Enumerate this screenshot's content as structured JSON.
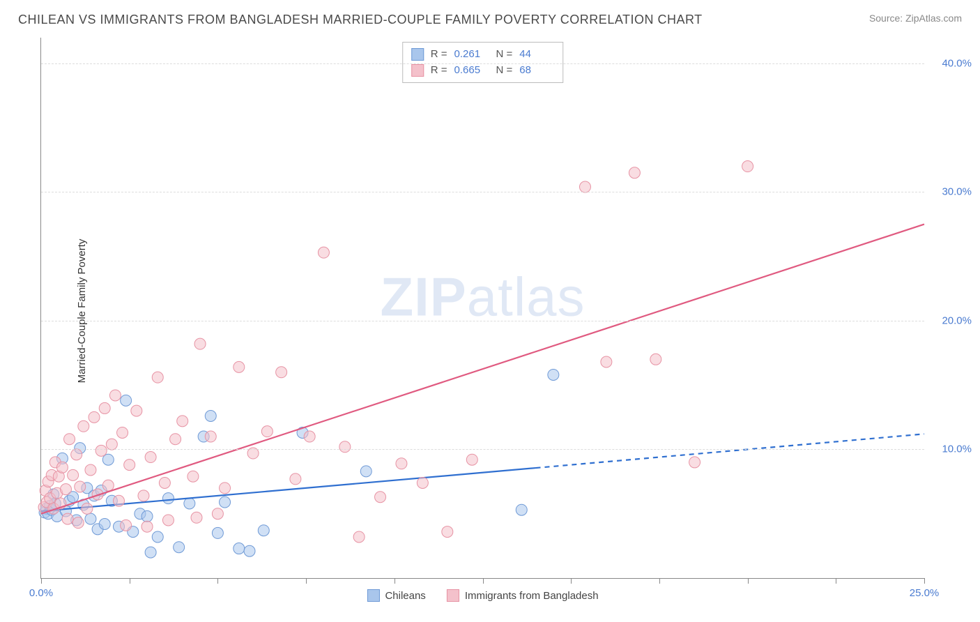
{
  "title": "CHILEAN VS IMMIGRANTS FROM BANGLADESH MARRIED-COUPLE FAMILY POVERTY CORRELATION CHART",
  "source": "Source: ZipAtlas.com",
  "ylabel": "Married-Couple Family Poverty",
  "watermark_bold": "ZIP",
  "watermark_light": "atlas",
  "chart": {
    "type": "scatter-with-regression",
    "xlim": [
      0,
      25
    ],
    "ylim": [
      0,
      42
    ],
    "xtick_positions": [
      0,
      2.5,
      5,
      7.5,
      10,
      12.5,
      15,
      17.5,
      20,
      22.5,
      25
    ],
    "xtick_labels_shown": {
      "0": "0.0%",
      "25": "25.0%"
    },
    "ytick_lines": [
      10,
      20,
      30,
      40
    ],
    "ytick_labels": {
      "10": "10.0%",
      "20": "20.0%",
      "30": "30.0%",
      "40": "40.0%"
    },
    "background_color": "#ffffff",
    "grid_color": "#dcdcdc",
    "axis_color": "#888888",
    "tick_label_color": "#4a7bd0",
    "marker_radius": 8,
    "marker_opacity": 0.55,
    "line_width": 2.2,
    "series": [
      {
        "name": "Chileans",
        "color_fill": "#a9c6ec",
        "color_stroke": "#6f9ad6",
        "line_color": "#2f6fd0",
        "r": 0.261,
        "n": 44,
        "regression": {
          "x1": 0,
          "y1": 5.2,
          "x2": 25,
          "y2": 11.2,
          "solid_until_x": 14
        },
        "points": [
          [
            0.1,
            5.1
          ],
          [
            0.15,
            5.4
          ],
          [
            0.2,
            5.0
          ],
          [
            0.25,
            5.6
          ],
          [
            0.3,
            5.3
          ],
          [
            0.35,
            6.5
          ],
          [
            0.4,
            5.8
          ],
          [
            0.45,
            4.8
          ],
          [
            0.6,
            9.3
          ],
          [
            0.7,
            5.2
          ],
          [
            0.8,
            6.0
          ],
          [
            0.9,
            6.3
          ],
          [
            1.0,
            4.5
          ],
          [
            1.1,
            10.1
          ],
          [
            1.2,
            5.7
          ],
          [
            1.3,
            7.0
          ],
          [
            1.4,
            4.6
          ],
          [
            1.5,
            6.4
          ],
          [
            1.6,
            3.8
          ],
          [
            1.7,
            6.8
          ],
          [
            1.8,
            4.2
          ],
          [
            1.9,
            9.2
          ],
          [
            2.0,
            6.0
          ],
          [
            2.2,
            4.0
          ],
          [
            2.4,
            13.8
          ],
          [
            2.6,
            3.6
          ],
          [
            2.8,
            5.0
          ],
          [
            3.0,
            4.8
          ],
          [
            3.3,
            3.2
          ],
          [
            3.6,
            6.2
          ],
          [
            3.9,
            2.4
          ],
          [
            4.2,
            5.8
          ],
          [
            4.6,
            11.0
          ],
          [
            4.8,
            12.6
          ],
          [
            5.0,
            3.5
          ],
          [
            5.2,
            5.9
          ],
          [
            5.6,
            2.3
          ],
          [
            5.9,
            2.1
          ],
          [
            6.3,
            3.7
          ],
          [
            7.4,
            11.3
          ],
          [
            9.2,
            8.3
          ],
          [
            13.6,
            5.3
          ],
          [
            14.5,
            15.8
          ],
          [
            3.1,
            2.0
          ]
        ]
      },
      {
        "name": "Immigrants from Bangladesh",
        "color_fill": "#f4c1cb",
        "color_stroke": "#e793a4",
        "line_color": "#e05a80",
        "r": 0.665,
        "n": 68,
        "regression": {
          "x1": 0,
          "y1": 5.0,
          "x2": 25,
          "y2": 27.5,
          "solid_until_x": 25
        },
        "points": [
          [
            0.08,
            5.5
          ],
          [
            0.12,
            6.8
          ],
          [
            0.16,
            5.9
          ],
          [
            0.2,
            7.5
          ],
          [
            0.25,
            6.2
          ],
          [
            0.3,
            8.0
          ],
          [
            0.35,
            5.4
          ],
          [
            0.4,
            9.0
          ],
          [
            0.45,
            6.6
          ],
          [
            0.5,
            7.9
          ],
          [
            0.55,
            5.8
          ],
          [
            0.6,
            8.6
          ],
          [
            0.7,
            6.9
          ],
          [
            0.8,
            10.8
          ],
          [
            0.9,
            8.0
          ],
          [
            1.0,
            9.6
          ],
          [
            1.1,
            7.1
          ],
          [
            1.2,
            11.8
          ],
          [
            1.3,
            5.4
          ],
          [
            1.4,
            8.4
          ],
          [
            1.5,
            12.5
          ],
          [
            1.6,
            6.5
          ],
          [
            1.7,
            9.9
          ],
          [
            1.8,
            13.2
          ],
          [
            1.9,
            7.2
          ],
          [
            2.0,
            10.4
          ],
          [
            2.1,
            14.2
          ],
          [
            2.2,
            6.0
          ],
          [
            2.3,
            11.3
          ],
          [
            2.5,
            8.8
          ],
          [
            2.7,
            13.0
          ],
          [
            2.9,
            6.4
          ],
          [
            3.1,
            9.4
          ],
          [
            3.3,
            15.6
          ],
          [
            3.5,
            7.4
          ],
          [
            3.8,
            10.8
          ],
          [
            4.0,
            12.2
          ],
          [
            4.3,
            7.9
          ],
          [
            4.5,
            18.2
          ],
          [
            4.8,
            11.0
          ],
          [
            5.2,
            7.0
          ],
          [
            5.6,
            16.4
          ],
          [
            6.0,
            9.7
          ],
          [
            6.4,
            11.4
          ],
          [
            6.8,
            16.0
          ],
          [
            7.2,
            7.7
          ],
          [
            7.6,
            11.0
          ],
          [
            8.0,
            25.3
          ],
          [
            8.6,
            10.2
          ],
          [
            9.0,
            3.2
          ],
          [
            9.6,
            6.3
          ],
          [
            10.2,
            8.9
          ],
          [
            10.8,
            7.4
          ],
          [
            11.5,
            3.6
          ],
          [
            12.2,
            9.2
          ],
          [
            15.4,
            30.4
          ],
          [
            16.0,
            16.8
          ],
          [
            16.8,
            31.5
          ],
          [
            17.4,
            17.0
          ],
          [
            18.5,
            9.0
          ],
          [
            20.0,
            32.0
          ],
          [
            2.4,
            4.1
          ],
          [
            3.0,
            4.0
          ],
          [
            3.6,
            4.5
          ],
          [
            4.4,
            4.7
          ],
          [
            5.0,
            5.0
          ],
          [
            1.05,
            4.3
          ],
          [
            0.75,
            4.6
          ]
        ]
      }
    ]
  },
  "legend_top_labels": {
    "r": "R  =",
    "n": "N  ="
  },
  "legend_bottom": [
    "Chileans",
    "Immigrants from Bangladesh"
  ]
}
